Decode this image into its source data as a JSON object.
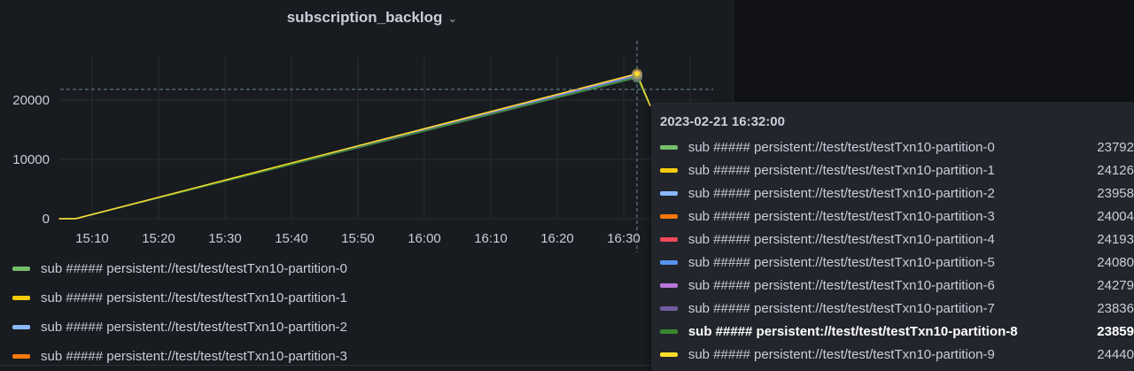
{
  "panel": {
    "title": "subscription_backlog",
    "menu_icon": "chevron-down-icon"
  },
  "chart_data": {
    "type": "line",
    "title": "subscription_backlog",
    "xlabel": "",
    "ylabel": "",
    "x_ticks": [
      "15:10",
      "15:20",
      "15:30",
      "15:40",
      "15:50",
      "16:00",
      "16:10",
      "16:20",
      "16:30"
    ],
    "y_ticks": [
      "0",
      "10000",
      "20000"
    ],
    "ylim": [
      0,
      26000
    ],
    "grid": true,
    "legend": "bottom",
    "crosshair": {
      "x": "16:32",
      "y": 21800
    },
    "series": [
      {
        "name": "sub ##### persistent://test/test/testTxn10-partition-0",
        "color": "#73BF69",
        "points": [
          [
            "15:05",
            0
          ],
          [
            "15:07:30",
            0
          ],
          [
            "16:32",
            23792
          ],
          [
            "16:34",
            19000
          ]
        ]
      },
      {
        "name": "sub ##### persistent://test/test/testTxn10-partition-1",
        "color": "#F2CC0C",
        "points": [
          [
            "15:05",
            0
          ],
          [
            "15:07:30",
            0
          ],
          [
            "16:32",
            24126
          ],
          [
            "16:34",
            19000
          ]
        ]
      },
      {
        "name": "sub ##### persistent://test/test/testTxn10-partition-2",
        "color": "#8AB8FF",
        "points": [
          [
            "15:05",
            0
          ],
          [
            "15:07:30",
            0
          ],
          [
            "16:32",
            23958
          ],
          [
            "16:34",
            19000
          ]
        ]
      },
      {
        "name": "sub ##### persistent://test/test/testTxn10-partition-3",
        "color": "#FF780A",
        "points": [
          [
            "15:05",
            0
          ],
          [
            "15:07:30",
            0
          ],
          [
            "16:32",
            24004
          ],
          [
            "16:34",
            19000
          ]
        ]
      },
      {
        "name": "sub ##### persistent://test/test/testTxn10-partition-4",
        "color": "#F2495C",
        "points": [
          [
            "15:05",
            0
          ],
          [
            "15:07:30",
            0
          ],
          [
            "16:32",
            24193
          ],
          [
            "16:34",
            19000
          ]
        ]
      },
      {
        "name": "sub ##### persistent://test/test/testTxn10-partition-5",
        "color": "#5794F2",
        "points": [
          [
            "15:05",
            0
          ],
          [
            "15:07:30",
            0
          ],
          [
            "16:32",
            24080
          ],
          [
            "16:34",
            19000
          ]
        ]
      },
      {
        "name": "sub ##### persistent://test/test/testTxn10-partition-6",
        "color": "#B877D9",
        "points": [
          [
            "15:05",
            0
          ],
          [
            "15:07:30",
            0
          ],
          [
            "16:32",
            24279
          ],
          [
            "16:34",
            19000
          ]
        ]
      },
      {
        "name": "sub ##### persistent://test/test/testTxn10-partition-7",
        "color": "#705DA0",
        "points": [
          [
            "15:05",
            0
          ],
          [
            "15:07:30",
            0
          ],
          [
            "16:32",
            23836
          ],
          [
            "16:34",
            19000
          ]
        ]
      },
      {
        "name": "sub ##### persistent://test/test/testTxn10-partition-8",
        "color": "#37872D",
        "points": [
          [
            "15:05",
            0
          ],
          [
            "15:07:30",
            0
          ],
          [
            "16:32",
            23859
          ],
          [
            "16:34",
            19000
          ]
        ]
      },
      {
        "name": "sub ##### persistent://test/test/testTxn10-partition-9",
        "color": "#FADE2A",
        "points": [
          [
            "15:05",
            0
          ],
          [
            "15:07:30",
            0
          ],
          [
            "16:32",
            24440
          ],
          [
            "16:34",
            19000
          ]
        ]
      }
    ]
  },
  "legend": {
    "items": [
      {
        "label": "sub ##### persistent://test/test/testTxn10-partition-0",
        "color": "#73BF69"
      },
      {
        "label": "sub ##### persistent://test/test/testTxn10-partition-1",
        "color": "#F2CC0C"
      },
      {
        "label": "sub ##### persistent://test/test/testTxn10-partition-2",
        "color": "#8AB8FF"
      },
      {
        "label": "sub ##### persistent://test/test/testTxn10-partition-3",
        "color": "#FF780A"
      }
    ]
  },
  "tooltip": {
    "time": "2023-02-21 16:32:00",
    "highlighted": 8,
    "rows": [
      {
        "label": "sub ##### persistent://test/test/testTxn10-partition-0",
        "value": "23792",
        "color": "#73BF69"
      },
      {
        "label": "sub ##### persistent://test/test/testTxn10-partition-1",
        "value": "24126",
        "color": "#F2CC0C"
      },
      {
        "label": "sub ##### persistent://test/test/testTxn10-partition-2",
        "value": "23958",
        "color": "#8AB8FF"
      },
      {
        "label": "sub ##### persistent://test/test/testTxn10-partition-3",
        "value": "24004",
        "color": "#FF780A"
      },
      {
        "label": "sub ##### persistent://test/test/testTxn10-partition-4",
        "value": "24193",
        "color": "#F2495C"
      },
      {
        "label": "sub ##### persistent://test/test/testTxn10-partition-5",
        "value": "24080",
        "color": "#5794F2"
      },
      {
        "label": "sub ##### persistent://test/test/testTxn10-partition-6",
        "value": "24279",
        "color": "#B877D9"
      },
      {
        "label": "sub ##### persistent://test/test/testTxn10-partition-7",
        "value": "23836",
        "color": "#705DA0"
      },
      {
        "label": "sub ##### persistent://test/test/testTxn10-partition-8",
        "value": "23859",
        "color": "#37872D"
      },
      {
        "label": "sub ##### persistent://test/test/testTxn10-partition-9",
        "value": "24440",
        "color": "#FADE2A"
      }
    ]
  }
}
